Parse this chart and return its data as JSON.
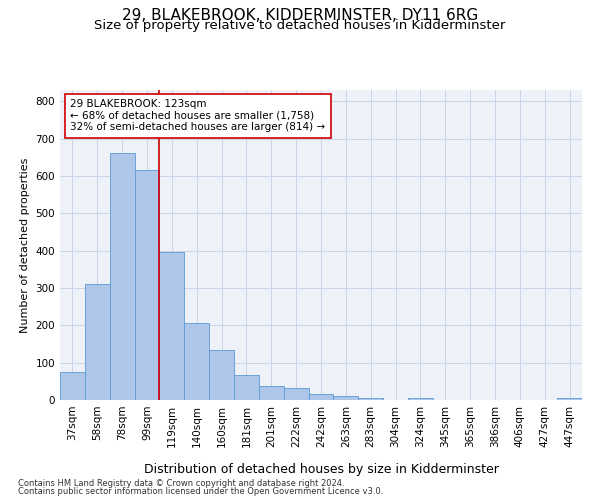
{
  "title": "29, BLAKEBROOK, KIDDERMINSTER, DY11 6RG",
  "subtitle": "Size of property relative to detached houses in Kidderminster",
  "xlabel": "Distribution of detached houses by size in Kidderminster",
  "ylabel": "Number of detached properties",
  "footnote1": "Contains HM Land Registry data © Crown copyright and database right 2024.",
  "footnote2": "Contains public sector information licensed under the Open Government Licence v3.0.",
  "categories": [
    "37sqm",
    "58sqm",
    "78sqm",
    "99sqm",
    "119sqm",
    "140sqm",
    "160sqm",
    "181sqm",
    "201sqm",
    "222sqm",
    "242sqm",
    "263sqm",
    "283sqm",
    "304sqm",
    "324sqm",
    "345sqm",
    "365sqm",
    "386sqm",
    "406sqm",
    "427sqm",
    "447sqm"
  ],
  "values": [
    75,
    310,
    660,
    615,
    395,
    205,
    135,
    67,
    38,
    32,
    17,
    12,
    5,
    0,
    5,
    0,
    0,
    0,
    0,
    0,
    5
  ],
  "bar_color": "#aec6e8",
  "bar_edge_color": "#5b9bd5",
  "grid_color": "#c8d4e8",
  "background_color": "#eef2f8",
  "vline_color": "#cc0000",
  "ylim": [
    0,
    830
  ],
  "yticks": [
    0,
    100,
    200,
    300,
    400,
    500,
    600,
    700,
    800
  ],
  "title_fontsize": 11,
  "subtitle_fontsize": 9.5,
  "xlabel_fontsize": 9,
  "ylabel_fontsize": 8,
  "tick_fontsize": 7.5,
  "annotation_fontsize": 7.5,
  "footnote_fontsize": 6,
  "vline_x": 3.5,
  "annot_line1": "29 BLAKEBROOK: 123sqm",
  "annot_line2": "← 68% of detached houses are smaller (1,758)",
  "annot_line3": "32% of semi-detached houses are larger (814) →"
}
